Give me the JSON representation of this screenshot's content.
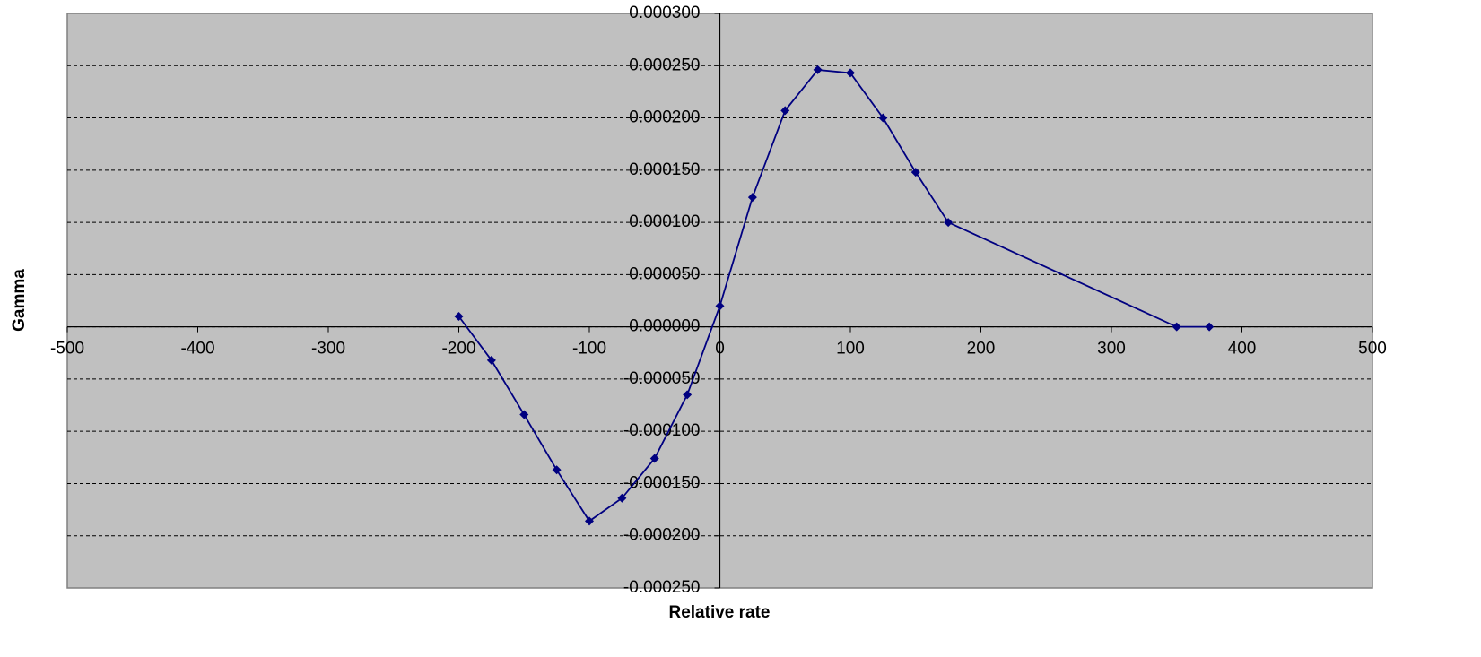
{
  "chart_data": {
    "type": "scatter-line",
    "x_label": "Relative rate",
    "y_label": "Gamma",
    "x": [
      -200,
      -175,
      -150,
      -125,
      -100,
      -75,
      -50,
      -25,
      0,
      25,
      50,
      75,
      100,
      125,
      150,
      175,
      350,
      375
    ],
    "values": [
      1e-05,
      -3.2e-05,
      -8.4e-05,
      -0.000137,
      -0.000186,
      -0.000164,
      -0.000126,
      -6.5e-05,
      2e-05,
      0.000124,
      0.000207,
      0.000246,
      0.000243,
      0.0002,
      0.000148,
      0.0001,
      0,
      0
    ],
    "color": "#000080",
    "xlim": [
      -500,
      500
    ],
    "xticks": [
      -500,
      -400,
      -300,
      -200,
      -100,
      0,
      100,
      200,
      300,
      400,
      500
    ],
    "ylim": [
      -0.00025,
      0.0003
    ],
    "yticks": [
      {
        "value": -0.00025,
        "label": "-0.000250"
      },
      {
        "value": -0.0002,
        "label": "-0.000200"
      },
      {
        "value": -0.00015,
        "label": "-0.000150"
      },
      {
        "value": -0.0001,
        "label": "-0.000100"
      },
      {
        "value": -5e-05,
        "label": "-0.000050"
      },
      {
        "value": 0,
        "label": "0.000000"
      },
      {
        "value": 5e-05,
        "label": "0.000050"
      },
      {
        "value": 0.0001,
        "label": "0.000100"
      },
      {
        "value": 0.00015,
        "label": "0.000150"
      },
      {
        "value": 0.0002,
        "label": "0.000200"
      },
      {
        "value": 0.00025,
        "label": "0.000250"
      },
      {
        "value": 0.0003,
        "label": "0.000300"
      }
    ],
    "grid": true
  }
}
